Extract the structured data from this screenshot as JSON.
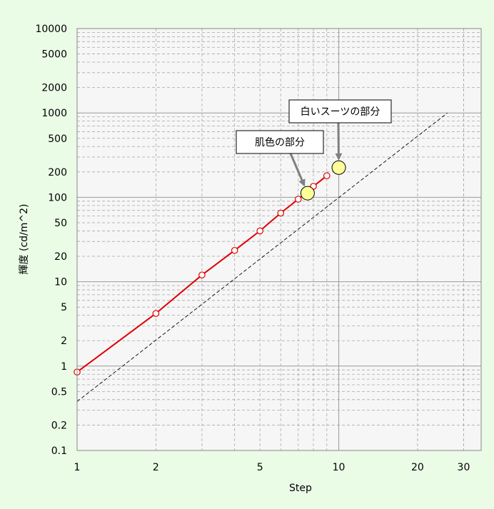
{
  "chart_data": {
    "type": "line",
    "title": "",
    "xlabel": "Step",
    "ylabel": "輝度 (cd/m^2)",
    "x_scale": "log",
    "y_scale": "log",
    "xlim": [
      1,
      35
    ],
    "ylim": [
      0.1,
      10000
    ],
    "x_ticks": [
      {
        "value": 1,
        "label": "1"
      },
      {
        "value": 2,
        "label": "2"
      },
      {
        "value": 5,
        "label": "5"
      },
      {
        "value": 10,
        "label": "10"
      },
      {
        "value": 20,
        "label": "20"
      },
      {
        "value": 30,
        "label": "30"
      }
    ],
    "y_ticks": [
      {
        "value": 0.1,
        "label": "0.1"
      },
      {
        "value": 0.2,
        "label": "0.2"
      },
      {
        "value": 0.5,
        "label": "0.5"
      },
      {
        "value": 1,
        "label": "1"
      },
      {
        "value": 2,
        "label": "2"
      },
      {
        "value": 5,
        "label": "5"
      },
      {
        "value": 10,
        "label": "10"
      },
      {
        "value": 20,
        "label": "20"
      },
      {
        "value": 50,
        "label": "50"
      },
      {
        "value": 100,
        "label": "100"
      },
      {
        "value": 200,
        "label": "200"
      },
      {
        "value": 500,
        "label": "500"
      },
      {
        "value": 1000,
        "label": "1000"
      },
      {
        "value": 2000,
        "label": "2000"
      },
      {
        "value": 5000,
        "label": "5000"
      },
      {
        "value": 10000,
        "label": "10000"
      }
    ],
    "grid": true,
    "series": [
      {
        "style": "solid",
        "color": "#e00000",
        "marker": "circle",
        "x": [
          1,
          2,
          3,
          4,
          5,
          6,
          7,
          8,
          9
        ],
        "y": [
          0.85,
          4.2,
          12,
          23.5,
          40,
          65,
          95,
          135,
          180
        ]
      },
      {
        "style": "dashed",
        "color": "#000000",
        "x": [
          1,
          26
        ],
        "y": [
          0.38,
          1000
        ]
      }
    ],
    "highlight_points": [
      {
        "x": 7.6,
        "y": 112,
        "color": "#ffff99"
      },
      {
        "x": 10,
        "y": 225,
        "color": "#ffff99"
      }
    ],
    "annotations": [
      {
        "text": "肌色の部分",
        "target_x": 7.6,
        "target_y": 112
      },
      {
        "text": "白いスーツの部分",
        "target_x": 10,
        "target_y": 225
      }
    ]
  }
}
